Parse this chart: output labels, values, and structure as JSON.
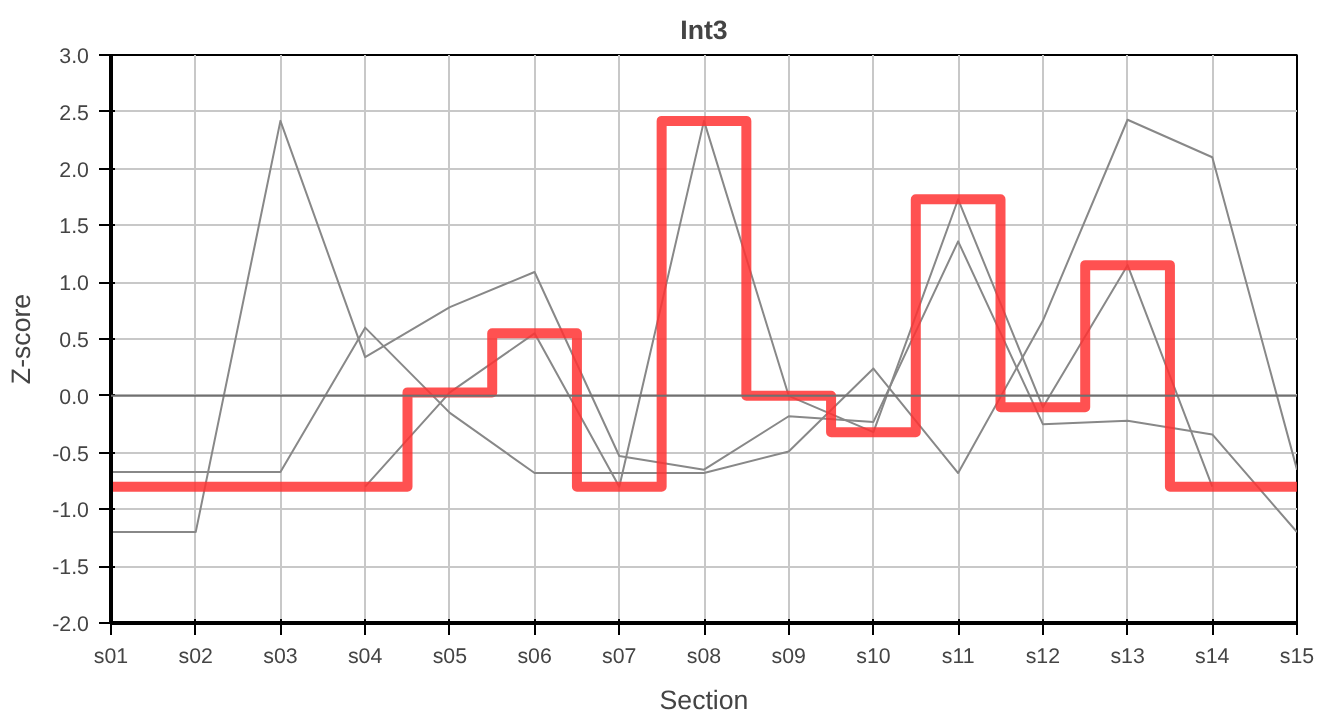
{
  "chart_data": {
    "type": "line",
    "title": "Int3",
    "xlabel": "Section",
    "ylabel": "Z-score",
    "categories": [
      "s01",
      "s02",
      "s03",
      "s04",
      "s05",
      "s06",
      "s07",
      "s08",
      "s09",
      "s10",
      "s11",
      "s12",
      "s13",
      "s14",
      "s15"
    ],
    "series": [
      {
        "color": "#888888",
        "values": [
          -1.2,
          -1.2,
          2.42,
          0.34,
          0.78,
          1.09,
          -0.53,
          -0.65,
          -0.18,
          -0.23,
          1.36,
          -0.25,
          -0.22,
          -0.34,
          -1.2
        ]
      },
      {
        "color": "#888888",
        "values": [
          -0.67,
          -0.67,
          -0.67,
          0.6,
          -0.15,
          -0.68,
          -0.68,
          -0.68,
          -0.49,
          0.24,
          -0.68,
          0.66,
          2.43,
          2.1,
          -0.65
        ]
      },
      {
        "color": "#888888",
        "values": [
          null,
          null,
          null,
          -0.8,
          0.03,
          0.55,
          -0.8,
          2.42,
          0.0,
          -0.32,
          1.73,
          -0.1,
          1.15,
          -0.8,
          null
        ]
      },
      {
        "type": "step",
        "color": "#ff3333",
        "values": [
          -0.8,
          -0.8,
          -0.8,
          -0.8,
          0.03,
          0.55,
          -0.8,
          2.42,
          0.0,
          -0.32,
          1.73,
          -0.1,
          1.15,
          -0.8,
          -0.8
        ]
      }
    ],
    "ylim": [
      -2.0,
      3.0
    ],
    "yticks": [
      {
        "value": -2.0,
        "label": "-2.0"
      },
      {
        "value": -1.5,
        "label": "-1.5"
      },
      {
        "value": -1.0,
        "label": "-1.0"
      },
      {
        "value": -0.5,
        "label": "-0.5"
      },
      {
        "value": 0.0,
        "label": "0.0"
      },
      {
        "value": 0.5,
        "label": "0.5"
      },
      {
        "value": 1.0,
        "label": "1.0"
      },
      {
        "value": 1.5,
        "label": "1.5"
      },
      {
        "value": 2.0,
        "label": "2.0"
      },
      {
        "value": 2.5,
        "label": "2.5"
      },
      {
        "value": 3.0,
        "label": "3.0"
      }
    ],
    "ref_lines": [
      {
        "axis": "y",
        "value": 0.0,
        "color": "#707070"
      }
    ],
    "grid": true
  }
}
